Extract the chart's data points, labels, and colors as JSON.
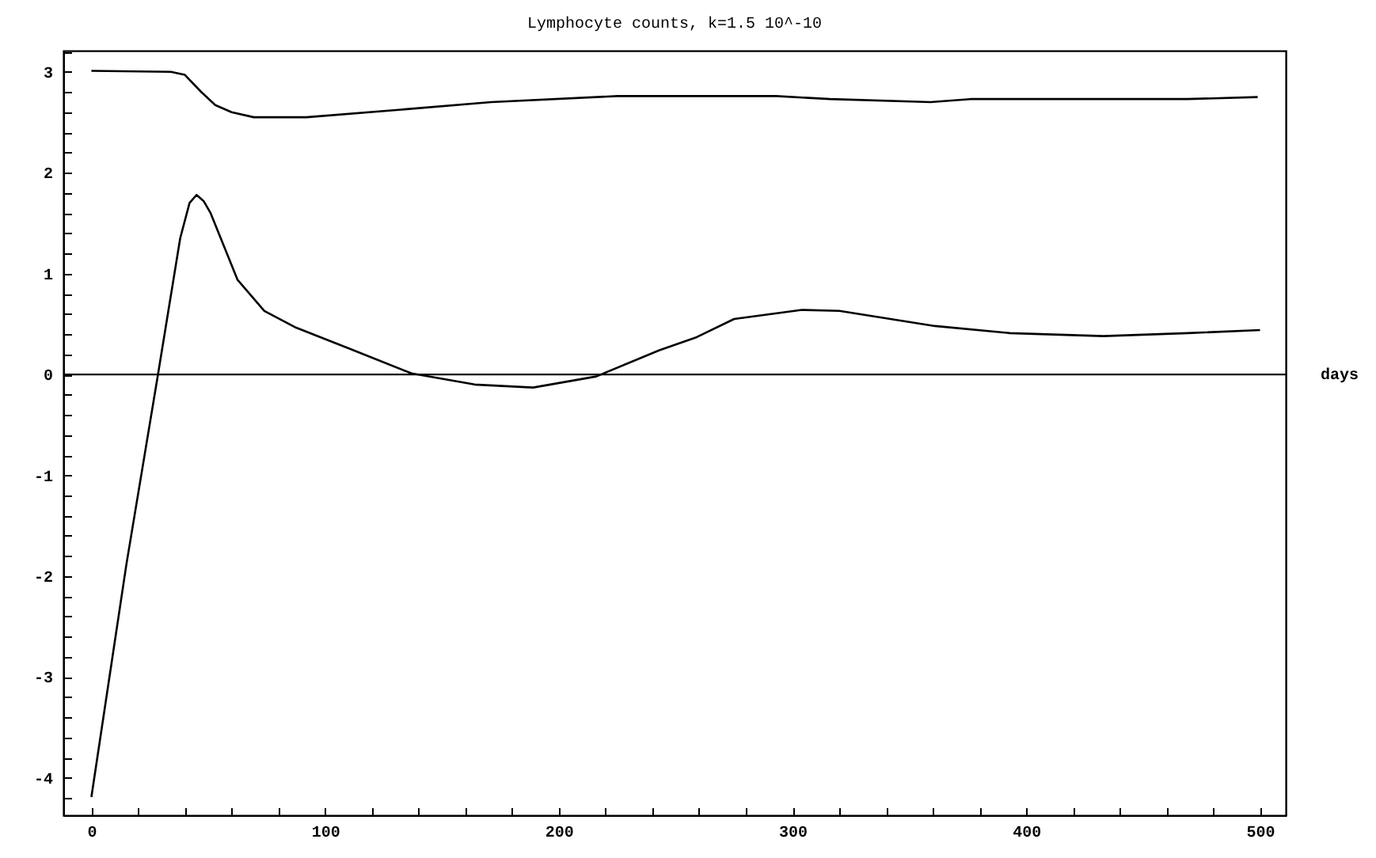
{
  "chart_data": {
    "type": "line",
    "title": "Lymphocyte counts,  k=1.5 10^-10",
    "xlabel": "days",
    "xlim": [
      -12,
      511
    ],
    "ylim": [
      -4.37,
      3.21
    ],
    "xticks": [
      0,
      {
        "value": 20,
        "label": null
      },
      {
        "value": 40,
        "label": null
      },
      {
        "value": 60,
        "label": null
      },
      {
        "value": 80,
        "label": null
      },
      100,
      {
        "value": 120,
        "label": null
      },
      {
        "value": 140,
        "label": null
      },
      {
        "value": 160,
        "label": null
      },
      {
        "value": 180,
        "label": null
      },
      200,
      {
        "value": 220,
        "label": null
      },
      {
        "value": 240,
        "label": null
      },
      {
        "value": 260,
        "label": null
      },
      {
        "value": 280,
        "label": null
      },
      300,
      {
        "value": 320,
        "label": null
      },
      {
        "value": 340,
        "label": null
      },
      {
        "value": 360,
        "label": null
      },
      {
        "value": 380,
        "label": null
      },
      400,
      {
        "value": 420,
        "label": null
      },
      {
        "value": 440,
        "label": null
      },
      {
        "value": 460,
        "label": null
      },
      {
        "value": 480,
        "label": null
      },
      500
    ],
    "yticks": [
      {
        "value": -4.2,
        "label": null
      },
      -4,
      {
        "value": -3.8,
        "label": null
      },
      {
        "value": -3.6,
        "label": null
      },
      {
        "value": -3.4,
        "label": null
      },
      {
        "value": -3.2,
        "label": null
      },
      -3,
      {
        "value": -2.8,
        "label": null
      },
      {
        "value": -2.6,
        "label": null
      },
      {
        "value": -2.4,
        "label": null
      },
      {
        "value": -2.2,
        "label": null
      },
      -2,
      {
        "value": -1.8,
        "label": null
      },
      {
        "value": -1.6,
        "label": null
      },
      {
        "value": -1.4,
        "label": null
      },
      {
        "value": -1.2,
        "label": null
      },
      -1,
      {
        "value": -0.8,
        "label": null
      },
      {
        "value": -0.6,
        "label": null
      },
      {
        "value": -0.4,
        "label": null
      },
      {
        "value": -0.2,
        "label": null
      },
      0,
      {
        "value": 0.2,
        "label": null
      },
      {
        "value": 0.4,
        "label": null
      },
      {
        "value": 0.6,
        "label": null
      },
      {
        "value": 0.8,
        "label": null
      },
      1,
      {
        "value": 1.2,
        "label": null
      },
      {
        "value": 1.4,
        "label": null
      },
      {
        "value": 1.6,
        "label": null
      },
      {
        "value": 1.8,
        "label": null
      },
      2,
      {
        "value": 2.2,
        "label": null
      },
      {
        "value": 2.4,
        "label": null
      },
      {
        "value": 2.6,
        "label": null
      },
      {
        "value": 2.8,
        "label": null
      },
      3,
      {
        "value": 3.2,
        "label": null
      }
    ],
    "ref_lines": [
      {
        "axis": "y",
        "value": 0,
        "color": "#000000"
      }
    ],
    "line_style": "solid",
    "series": [
      {
        "color": "#000000",
        "x": [
          0,
          34,
          40,
          47,
          53,
          60,
          69.5,
          92,
          135,
          171,
          225,
          293,
          316,
          359,
          376,
          469,
          499
        ],
        "values": [
          3.01,
          3.0,
          2.97,
          2.8,
          2.67,
          2.6,
          2.55,
          2.55,
          2.63,
          2.7,
          2.76,
          2.76,
          2.73,
          2.7,
          2.73,
          2.73,
          2.75
        ]
      },
      {
        "color": "#000000",
        "x": [
          0,
          15,
          28.5,
          38,
          42,
          45,
          48,
          51,
          62.5,
          74,
          87,
          110,
          137,
          164,
          189,
          216,
          243,
          259,
          275,
          304,
          320,
          361,
          393,
          433,
          469,
          500
        ],
        "values": [
          -4.19,
          -1.88,
          0,
          1.35,
          1.7,
          1.78,
          1.72,
          1.6,
          0.94,
          0.63,
          0.47,
          0.26,
          0.01,
          -0.1,
          -0.13,
          -0.02,
          0.24,
          0.37,
          0.55,
          0.64,
          0.63,
          0.48,
          0.41,
          0.38,
          0.41,
          0.44
        ]
      }
    ]
  }
}
